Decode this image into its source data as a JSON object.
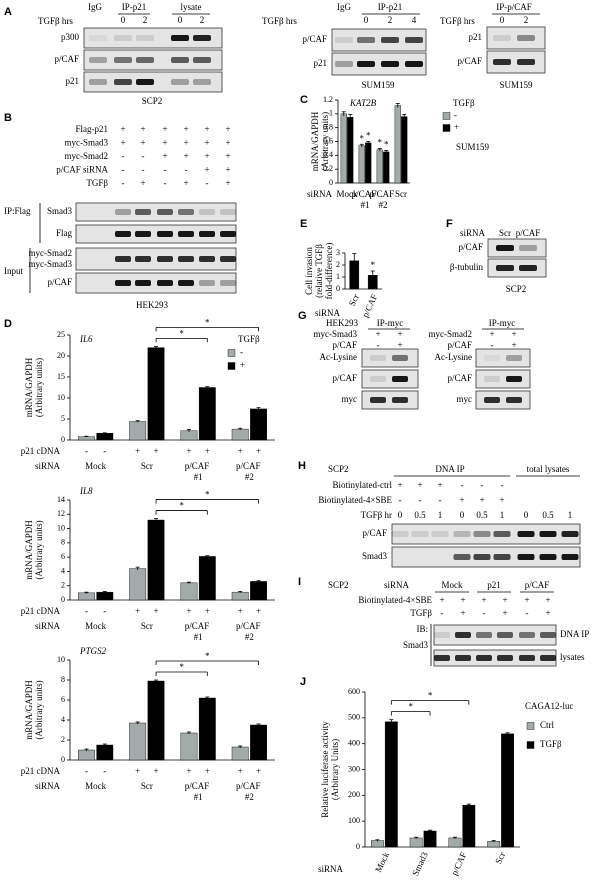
{
  "panels": {
    "A": {
      "letter": "A",
      "blots": [
        {
          "treatment_label": "TGFβ hrs",
          "groups": [
            "IgG",
            "IP-p21",
            "lysate"
          ],
          "lanes": [
            "0",
            "2",
            "0",
            "2"
          ],
          "rows": [
            "p300",
            "p/CAF",
            "p21"
          ],
          "cell_line": "SCP2"
        },
        {
          "treatment_label": "TGFβ hrs",
          "groups": [
            "IgG",
            "IP-p21"
          ],
          "lanes": [
            "0",
            "2",
            "4"
          ],
          "rows": [
            "p/CAF",
            "p21"
          ],
          "cell_line": "SUM159"
        },
        {
          "treatment_label": "TGFβ hrs",
          "groups": [
            "IP-p/CAF"
          ],
          "lanes": [
            "0",
            "2"
          ],
          "rows": [
            "p21",
            "p/CAF"
          ],
          "cell_line": "SUM159"
        }
      ]
    },
    "B": {
      "letter": "B",
      "sign_rows": [
        {
          "label": "Flag-p21",
          "signs": [
            "+",
            "+",
            "+",
            "+",
            "+",
            "+"
          ]
        },
        {
          "label": "myc-Smad3",
          "signs": [
            "+",
            "+",
            "+",
            "+",
            "+",
            "+"
          ]
        },
        {
          "label": "myc-Smad2",
          "signs": [
            "-",
            "-",
            "+",
            "+",
            "+",
            "+"
          ]
        },
        {
          "label": "p/CAF siRNA",
          "signs": [
            "-",
            "-",
            "-",
            "-",
            "+",
            "+"
          ]
        },
        {
          "label": "TGFβ",
          "signs": [
            "-",
            "+",
            "-",
            "+",
            "-",
            "+"
          ]
        }
      ],
      "ip_label": "IP:Flag",
      "ip_rows": [
        "Smad3",
        "Flag"
      ],
      "input_label": "Input",
      "input_rows": [
        "myc-Smad2",
        "myc-Smad3",
        "p/CAF"
      ],
      "cell_line": "HEK293"
    },
    "F": {
      "letter": "F",
      "treatment_label": "siRNA",
      "lanes": [
        "Scr",
        "p/CAF"
      ],
      "rows": [
        "p/CAF",
        "β-tubulin"
      ],
      "cell_line": "SCP2"
    },
    "G": {
      "letter": "G",
      "cell_line": "HEK293",
      "blots": [
        {
          "group": "IP-myc",
          "sign_rows": [
            {
              "label": "myc-Smad3",
              "signs": [
                "+",
                "+"
              ]
            },
            {
              "label": "p/CAF",
              "signs": [
                "-",
                "+"
              ]
            }
          ],
          "rows": [
            "Ac-Lysine",
            "p/CAF",
            "myc"
          ]
        },
        {
          "group": "IP-myc",
          "sign_rows": [
            {
              "label": "myc-Smad2",
              "signs": [
                "+",
                "+"
              ]
            },
            {
              "label": "p/CAF",
              "signs": [
                "-",
                "+"
              ]
            }
          ],
          "rows": [
            "Ac-Lysine",
            "p/CAF",
            "myc"
          ]
        }
      ]
    },
    "H": {
      "letter": "H",
      "cell_line": "SCP2",
      "groups": [
        "DNA IP",
        "total lysates"
      ],
      "sign_rows": [
        {
          "label": "Biotinylated-ctrl",
          "signs": [
            "+",
            "+",
            "+",
            "-",
            "-",
            "-"
          ]
        },
        {
          "label": "Biotinylated-4×SBE",
          "signs": [
            "-",
            "-",
            "-",
            "+",
            "+",
            "+"
          ]
        },
        {
          "label": "TGFβ hr",
          "signs": [
            "0",
            "0.5",
            "1",
            "0",
            "0.5",
            "1",
            "0",
            "0.5",
            "1"
          ]
        }
      ],
      "rows": [
        "p/CAF",
        "Smad3"
      ]
    },
    "I": {
      "letter": "I",
      "cell_line": "SCP2",
      "treatment_label": "siRNA",
      "groups": [
        "Mock",
        "p21",
        "p/CAF"
      ],
      "sign_rows": [
        {
          "label": "Biotinylated-4×SBE",
          "signs": [
            "+",
            "+",
            "+",
            "+",
            "+",
            "+"
          ]
        },
        {
          "label": "TGFβ",
          "signs": [
            "-",
            "+",
            "-",
            "+",
            "-",
            "+"
          ]
        }
      ],
      "ib_label": "IB:",
      "ib_target": "Smad3",
      "rows": [
        "DNA IP",
        "lysates"
      ]
    }
  },
  "chart_data": [
    {
      "type": "bar",
      "letter": "C",
      "title": "KAT2B",
      "ylabel": [
        "mRNA/GAPDH",
        "(Arbitrary units)"
      ],
      "xlabel": "siRNA",
      "categories": [
        "Mock",
        "p/CAF #1",
        "p/CAF #2",
        "Scr"
      ],
      "legend_title": "TGFβ",
      "note": "SUM159",
      "series": [
        {
          "name": "-",
          "color": "#a3abaa",
          "values": [
            1.0,
            0.54,
            0.48,
            1.12
          ],
          "errors": [
            0.03,
            0.02,
            0.02,
            0.03
          ]
        },
        {
          "name": "+",
          "color": "#000000",
          "values": [
            0.95,
            0.58,
            0.45,
            0.96
          ],
          "errors": [
            0.04,
            0.02,
            0.02,
            0.03
          ]
        }
      ],
      "ylim": [
        0,
        1.2
      ],
      "yticks": [
        0,
        0.2,
        0.4,
        0.6,
        0.8,
        1,
        1.2
      ],
      "annotations": [
        {
          "text": "*",
          "category": 1,
          "series": 0
        },
        {
          "text": "*",
          "category": 1,
          "series": 1
        },
        {
          "text": "*",
          "category": 2,
          "series": 0
        },
        {
          "text": "*",
          "category": 2,
          "series": 1
        }
      ]
    },
    {
      "type": "bar",
      "letter": "E",
      "ylabel": [
        "Cell invasion",
        "(relative TGFβ",
        "fold-difference)"
      ],
      "xlabel": "siRNA",
      "categories": [
        "Scr",
        "p/CAF"
      ],
      "values": [
        2.35,
        1.15
      ],
      "errors": [
        0.6,
        0.35
      ],
      "color": "#000000",
      "ylim": [
        0,
        3
      ],
      "yticks": [
        0,
        1,
        2,
        3
      ],
      "rotate_categories": true,
      "annotations": [
        {
          "text": "*",
          "category": 1
        }
      ]
    },
    {
      "type": "bar",
      "letter": "D",
      "title": "IL6",
      "ylabel": [
        "mRNA/GAPDH",
        "(Arbitrary units)"
      ],
      "xlabel": "siRNA",
      "categories": [
        "Mock",
        "Scr",
        "p/CAF #1",
        "p/CAF #2"
      ],
      "legend_title": "TGFβ",
      "row_label": "p21 cDNA",
      "row_signs": [
        "-",
        "-",
        "+",
        "+",
        "+",
        "+",
        "+",
        "+"
      ],
      "series": [
        {
          "name": "-",
          "color": "#a3abaa",
          "values": [
            0.8,
            4.4,
            2.2,
            2.6
          ],
          "errors": [
            0.1,
            0.2,
            0.3,
            0.2
          ]
        },
        {
          "name": "+",
          "color": "#000000",
          "values": [
            1.6,
            22,
            12.5,
            7.4
          ],
          "errors": [
            0.1,
            0.3,
            0.2,
            0.3
          ]
        }
      ],
      "ylim": [
        0,
        25
      ],
      "yticks": [
        0,
        5,
        10,
        15,
        20,
        25
      ],
      "brackets": [
        {
          "text": "*",
          "from": 1,
          "to": 2,
          "series": 1
        },
        {
          "text": "*",
          "from": 1,
          "to": 3,
          "series": 1
        }
      ]
    },
    {
      "type": "bar",
      "title": "IL8",
      "ylabel": [
        "mRNA/GAPDH",
        "(Arbitrary units)"
      ],
      "xlabel": "siRNA",
      "categories": [
        "Mock",
        "Scr",
        "p/CAF #1",
        "p/CAF #2"
      ],
      "row_label": "p21 cDNA",
      "row_signs": [
        "-",
        "-",
        "+",
        "+",
        "+",
        "+",
        "+",
        "+"
      ],
      "series": [
        {
          "color": "#a3abaa",
          "values": [
            1.0,
            4.4,
            2.4,
            1.1
          ],
          "errors": [
            0.1,
            0.2,
            0.1,
            0.1
          ]
        },
        {
          "color": "#000000",
          "values": [
            1.1,
            11.2,
            6.1,
            2.6
          ],
          "errors": [
            0.1,
            0.2,
            0.1,
            0.1
          ]
        }
      ],
      "ylim": [
        0,
        14
      ],
      "yticks": [
        0,
        2,
        4,
        6,
        8,
        10,
        12,
        14
      ],
      "brackets": [
        {
          "text": "*",
          "from": 1,
          "to": 2,
          "series": 1
        },
        {
          "text": "*",
          "from": 1,
          "to": 3,
          "series": 1
        }
      ]
    },
    {
      "type": "bar",
      "title": "PTGS2",
      "ylabel": [
        "mRNA/GAPDH",
        "(Arbitrary units)"
      ],
      "xlabel": "siRNA",
      "categories": [
        "Mock",
        "Scr",
        "p/CAF #1",
        "p/CAF #2"
      ],
      "row_label": "p21 cDNA",
      "row_signs": [
        "-",
        "-",
        "+",
        "+",
        "+",
        "+",
        "+",
        "+"
      ],
      "series": [
        {
          "color": "#a3abaa",
          "values": [
            1.0,
            3.7,
            2.7,
            1.3
          ],
          "errors": [
            0.1,
            0.1,
            0.1,
            0.1
          ]
        },
        {
          "color": "#000000",
          "values": [
            1.5,
            7.9,
            6.2,
            3.5
          ],
          "errors": [
            0.1,
            0.1,
            0.1,
            0.1
          ]
        }
      ],
      "ylim": [
        0,
        10
      ],
      "yticks": [
        0,
        2,
        4,
        6,
        8,
        10
      ],
      "brackets": [
        {
          "text": "*",
          "from": 1,
          "to": 2,
          "series": 1
        },
        {
          "text": "*",
          "from": 1,
          "to": 3,
          "series": 1
        }
      ]
    },
    {
      "type": "bar",
      "letter": "J",
      "ylabel": [
        "Relative luciferase activity",
        "(Arbitrary Units)"
      ],
      "xlabel": "siRNA",
      "categories": [
        "Mock",
        "Smad3",
        "p/CAF",
        "Scr"
      ],
      "legend_title": "CAGA12-luc",
      "rotate_categories": true,
      "series": [
        {
          "name": "Ctrl",
          "color": "#a3abaa",
          "values": [
            25,
            35,
            35,
            22
          ],
          "errors": [
            3,
            3,
            3,
            3
          ]
        },
        {
          "name": "TGFβ",
          "color": "#000000",
          "values": [
            485,
            62,
            162,
            438
          ],
          "errors": [
            8,
            3,
            4,
            4
          ]
        }
      ],
      "ylim": [
        0,
        600
      ],
      "yticks": [
        0,
        100,
        200,
        300,
        400,
        500,
        600
      ],
      "brackets": [
        {
          "text": "*",
          "from": 0,
          "to": 1,
          "series": 1
        },
        {
          "text": "*",
          "from": 0,
          "to": 2,
          "series": 1
        }
      ]
    }
  ]
}
